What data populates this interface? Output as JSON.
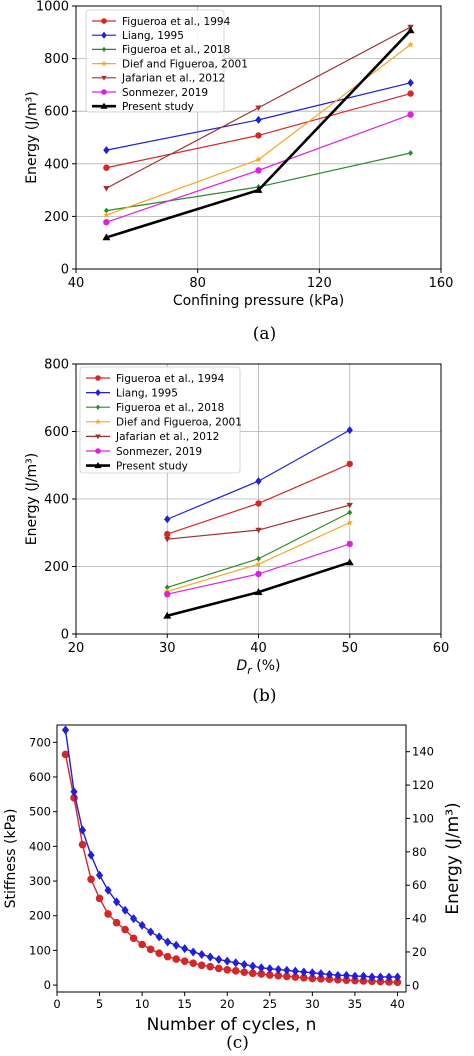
{
  "chart_data": [
    {
      "type": "line",
      "caption": "(a)",
      "xlabel": "Confining pressure (kPa)",
      "ylabel": "Energy (J/m³)",
      "xlim": [
        40,
        160
      ],
      "ylim": [
        0,
        1000
      ],
      "xticks": [
        40,
        80,
        120,
        160
      ],
      "yticks": [
        0,
        200,
        400,
        600,
        800,
        1000
      ],
      "grid": true,
      "legend_position": "top-left",
      "x": [
        50,
        100,
        150
      ],
      "series": [
        {
          "name": "Figueroa et al., 1994",
          "color": "#d62728",
          "marker": "circle",
          "values": [
            385,
            508,
            667
          ]
        },
        {
          "name": "Liang, 1995",
          "color": "#1f1fdc",
          "marker": "diamond",
          "values": [
            452,
            567,
            708
          ]
        },
        {
          "name": "Figueroa et al., 2018",
          "color": "#2a8a2a",
          "marker": "diamond-small",
          "values": [
            222,
            312,
            441
          ]
        },
        {
          "name": "Dief and Figueroa, 2001",
          "color": "#f5a623",
          "marker": "star",
          "values": [
            205,
            416,
            853
          ]
        },
        {
          "name": "Jafarian et al., 2012",
          "color": "#a03030",
          "marker": "triangle-down",
          "values": [
            307,
            613,
            920
          ]
        },
        {
          "name": "Sonmezer, 2019",
          "color": "#e020e0",
          "marker": "circle",
          "values": [
            178,
            375,
            587
          ]
        },
        {
          "name": "Present study",
          "color": "#000000",
          "marker": "triangle-up",
          "thick": true,
          "values": [
            120,
            300,
            907
          ]
        }
      ]
    },
    {
      "type": "line",
      "caption": "(b)",
      "xlabel": "Dr (%)",
      "ylabel": "Energy (J/m³)",
      "xlim": [
        20,
        60
      ],
      "ylim": [
        0,
        800
      ],
      "xticks": [
        20,
        30,
        40,
        50,
        60
      ],
      "yticks": [
        0,
        200,
        400,
        600,
        800
      ],
      "grid": true,
      "legend_position": "top-left",
      "x": [
        30,
        40,
        50
      ],
      "series": [
        {
          "name": "Figueroa et al., 1994",
          "color": "#d62728",
          "marker": "circle",
          "values": [
            296,
            387,
            504
          ]
        },
        {
          "name": "Liang, 1995",
          "color": "#1f1fdc",
          "marker": "diamond",
          "values": [
            340,
            453,
            604
          ]
        },
        {
          "name": "Figueroa et al., 2018",
          "color": "#2a8a2a",
          "marker": "diamond-small",
          "values": [
            138,
            223,
            360
          ]
        },
        {
          "name": "Dief and Figueroa, 2001",
          "color": "#f5a623",
          "marker": "star",
          "values": [
            126,
            207,
            330
          ]
        },
        {
          "name": "Jafarian et al., 2012",
          "color": "#a03030",
          "marker": "triangle-down",
          "values": [
            281,
            308,
            382
          ]
        },
        {
          "name": "Sonmezer, 2019",
          "color": "#e020e0",
          "marker": "circle",
          "values": [
            118,
            178,
            267
          ]
        },
        {
          "name": "Present study",
          "color": "#000000",
          "marker": "triangle-up",
          "thick": true,
          "values": [
            54,
            124,
            212
          ]
        }
      ]
    },
    {
      "type": "line",
      "caption": "(c)",
      "xlabel": "Number of cycles, n",
      "ylabel": "Stiffness (kPa)",
      "y2label": "Energy (J/m³)",
      "xlim": [
        0,
        41
      ],
      "ylim": [
        -20,
        750
      ],
      "y2lim": [
        -4,
        156
      ],
      "xticks": [
        0,
        5,
        10,
        15,
        20,
        25,
        30,
        35,
        40
      ],
      "yticks": [
        0,
        100,
        200,
        300,
        400,
        500,
        600,
        700
      ],
      "y2ticks": [
        0,
        20,
        40,
        60,
        80,
        100,
        120,
        140
      ],
      "grid": false,
      "x": [
        1,
        2,
        3,
        4,
        5,
        6,
        7,
        8,
        9,
        10,
        11,
        12,
        13,
        14,
        15,
        16,
        17,
        18,
        19,
        20,
        21,
        22,
        23,
        24,
        25,
        26,
        27,
        28,
        29,
        30,
        31,
        32,
        33,
        34,
        35,
        36,
        37,
        38,
        39,
        40
      ],
      "series": [
        {
          "name": "Stiffness",
          "axis": "left",
          "color": "#d62728",
          "marker": "circle",
          "values": [
            665,
            540,
            405,
            305,
            250,
            205,
            180,
            160,
            135,
            117,
            103,
            92,
            82,
            75,
            69,
            63,
            57,
            53,
            48,
            44,
            41,
            37,
            34,
            32,
            29,
            27,
            25,
            23,
            21,
            19,
            18,
            17,
            15,
            14,
            13,
            12,
            11,
            10,
            9,
            8
          ]
        },
        {
          "name": "Energy",
          "axis": "right",
          "color": "#1f1fdc",
          "marker": "diamond",
          "values": [
            153,
            116,
            93,
            78,
            66,
            57,
            50,
            45,
            40,
            36,
            32,
            29,
            26,
            24,
            22,
            20,
            18.5,
            17,
            15.5,
            14.5,
            13.5,
            12.5,
            11.5,
            10.5,
            10,
            9.5,
            9,
            8.5,
            8,
            7.5,
            7,
            6.5,
            6,
            6,
            5.5,
            5.5,
            5,
            5,
            5,
            5
          ]
        }
      ]
    }
  ]
}
